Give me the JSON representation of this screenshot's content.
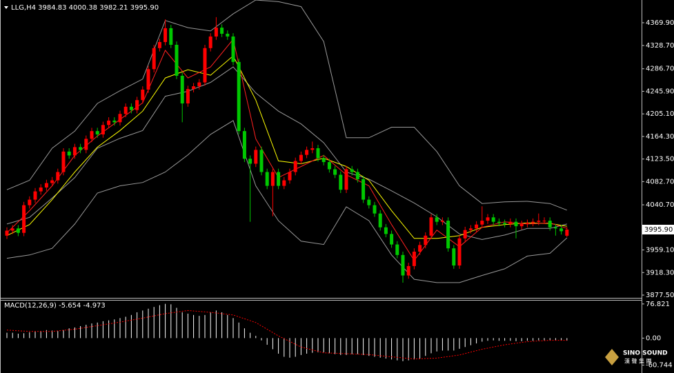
{
  "chart_data": [
    {
      "type": "candlestick",
      "title": "LLG,H4 3984.83 4000.38 3982.21 3995.90",
      "up_color": "#ff0000",
      "down_color": "#00c800",
      "ylim": [
        3872.5,
        4411
      ],
      "yticks": [
        {
          "value": 4369.9,
          "label": "4369.90"
        },
        {
          "value": 4328.7,
          "label": "4328.70"
        },
        {
          "value": 4286.7,
          "label": "4286.70"
        },
        {
          "value": 4245.9,
          "label": "4245.90"
        },
        {
          "value": 4205.1,
          "label": "4205.10"
        },
        {
          "value": 4164.3,
          "label": "4164.30"
        },
        {
          "value": 4123.5,
          "label": "4123.50"
        },
        {
          "value": 4082.7,
          "label": "4082.70"
        },
        {
          "value": 4040.7,
          "label": "4040.70"
        },
        {
          "value": 3959.1,
          "label": "3959.10"
        },
        {
          "value": 3918.3,
          "label": "3918.30"
        },
        {
          "value": 3877.5,
          "label": "3877.50"
        }
      ],
      "last_price": {
        "value": 3995.9,
        "label": "3995.90"
      },
      "open": [
        3985,
        3994,
        3998,
        3990,
        4040,
        4050,
        4065,
        4072,
        4080,
        4085,
        4100,
        4137,
        4130,
        4145,
        4140,
        4160,
        4174,
        4168,
        4185,
        4193,
        4190,
        4205,
        4218,
        4212,
        4230,
        4249,
        4286,
        4324,
        4335,
        4360,
        4330,
        4274,
        4224,
        4250,
        4255,
        4262,
        4324,
        4345,
        4361,
        4350,
        4345,
        4299,
        4174,
        4124,
        4115,
        4140,
        4100,
        4075,
        4100,
        4075,
        4085,
        4100,
        4120,
        4131,
        4140,
        4143,
        4125,
        4118,
        4105,
        4095,
        4068,
        4105,
        4100,
        4087,
        4050,
        4040,
        4025,
        4000,
        3988,
        3969,
        3950,
        3913,
        3930,
        3956,
        3968,
        3985,
        4018,
        4010,
        4012,
        3962,
        3931,
        3980,
        3995,
        3998,
        4005,
        4012,
        4018,
        4010,
        4008,
        4006,
        4010,
        4002,
        4006,
        4008,
        4010,
        4012,
        4012,
        4000,
        3998,
        3984.83
      ],
      "high": [
        4000,
        4004,
        4004,
        4046,
        4056,
        4071,
        4078,
        4086,
        4091,
        4106,
        4143,
        4143,
        4151,
        4151,
        4166,
        4180,
        4180,
        4191,
        4199,
        4199,
        4211,
        4224,
        4224,
        4236,
        4255,
        4292,
        4330,
        4341,
        4376,
        4366,
        4336,
        4280,
        4256,
        4261,
        4268,
        4330,
        4351,
        4380,
        4367,
        4356,
        4351,
        4305,
        4180,
        4130,
        4146,
        4146,
        4106,
        4106,
        4106,
        4091,
        4106,
        4126,
        4137,
        4146,
        4155,
        4149,
        4131,
        4124,
        4111,
        4101,
        4111,
        4111,
        4106,
        4093,
        4056,
        4046,
        4031,
        4006,
        3994,
        3975,
        3956,
        3936,
        3962,
        3974,
        3991,
        4024,
        4024,
        4018,
        4018,
        3968,
        3986,
        4001,
        4004,
        4011,
        4038,
        4024,
        4024,
        4016,
        4014,
        4016,
        4016,
        4012,
        4014,
        4016,
        4025,
        4018,
        4018,
        4006,
        4004,
        4000.38
      ],
      "low": [
        3979,
        3988,
        3984,
        3984,
        4034,
        4044,
        4059,
        4066,
        4074,
        4079,
        4094,
        4124,
        4124,
        4134,
        4134,
        4154,
        4162,
        4162,
        4179,
        4184,
        4184,
        4199,
        4206,
        4206,
        4224,
        4243,
        4280,
        4318,
        4329,
        4324,
        4268,
        4190,
        4218,
        4244,
        4249,
        4256,
        4318,
        4339,
        4344,
        4339,
        4293,
        4168,
        4118,
        4010,
        4109,
        4094,
        4069,
        4020,
        4069,
        4069,
        4079,
        4094,
        4114,
        4125,
        4134,
        4119,
        4112,
        4099,
        4089,
        4062,
        4062,
        4094,
        4081,
        4044,
        4034,
        4019,
        3994,
        3982,
        3963,
        3944,
        3900,
        3907,
        3924,
        3950,
        3962,
        3979,
        4004,
        4004,
        3956,
        3925,
        3925,
        3974,
        3989,
        3992,
        3999,
        4006,
        4004,
        4002,
        4000,
        4000,
        3980,
        3996,
        4000,
        4002,
        4004,
        4006,
        3994,
        3985,
        3987,
        3982.21
      ],
      "close": [
        3994,
        3998,
        3990,
        4040,
        4050,
        4065,
        4072,
        4080,
        4085,
        4100,
        4137,
        4130,
        4145,
        4140,
        4160,
        4174,
        4168,
        4185,
        4193,
        4190,
        4205,
        4218,
        4212,
        4230,
        4249,
        4286,
        4324,
        4335,
        4360,
        4330,
        4274,
        4224,
        4250,
        4255,
        4262,
        4324,
        4345,
        4361,
        4350,
        4345,
        4299,
        4174,
        4124,
        4115,
        4140,
        4100,
        4075,
        4100,
        4075,
        4085,
        4100,
        4120,
        4131,
        4140,
        4143,
        4125,
        4118,
        4105,
        4095,
        4068,
        4105,
        4100,
        4087,
        4050,
        4040,
        4025,
        4000,
        3988,
        3969,
        3950,
        3913,
        3930,
        3956,
        3968,
        3985,
        4018,
        4010,
        4012,
        3962,
        3931,
        3980,
        3995,
        3998,
        4005,
        4012,
        4018,
        4010,
        4008,
        4006,
        4010,
        4002,
        4006,
        4008,
        4010,
        4012,
        4012,
        4000,
        3998,
        3993,
        3995.9
      ],
      "overlay_x": [
        0,
        4,
        8,
        12,
        16,
        20,
        24,
        28,
        32,
        36,
        40,
        44,
        48,
        52,
        56,
        60,
        64,
        68,
        72,
        76,
        80,
        84,
        88,
        92,
        96,
        99
      ],
      "overlays": [
        {
          "color": "#9a9a9a",
          "values": [
            4068,
            4085,
            4143,
            4174,
            4224,
            4247,
            4268,
            4374,
            4361,
            4355,
            4386,
            4411,
            4408,
            4399,
            4336,
            4162,
            4162,
            4181,
            4181,
            4137,
            4075,
            4043,
            4046,
            4047,
            4043,
            4031
          ]
        },
        {
          "color": "#9a9a9a",
          "values": [
            4006,
            4018,
            4053,
            4090,
            4143,
            4161,
            4175,
            4237,
            4246,
            4262,
            4290,
            4243,
            4210,
            4187,
            4153,
            4100,
            4087,
            4066,
            4044,
            4019,
            3988,
            3978,
            3986,
            3998,
            3998,
            4006
          ]
        },
        {
          "color": "#9a9a9a",
          "values": [
            3944,
            3950,
            3962,
            4006,
            4062,
            4075,
            4081,
            4100,
            4131,
            4168,
            4193,
            4075,
            4012,
            3975,
            3969,
            4037,
            4012,
            3950,
            3906,
            3900,
            3900,
            3913,
            3925,
            3948,
            3953,
            3981
          ]
        },
        {
          "color": "#ffff00",
          "values": [
            3985,
            4005,
            4050,
            4100,
            4145,
            4175,
            4210,
            4270,
            4285,
            4275,
            4310,
            4230,
            4120,
            4115,
            4125,
            4110,
            4085,
            4030,
            3980,
            3980,
            3985,
            4000,
            4005,
            4008,
            4007,
            4002
          ]
        },
        {
          "color": "#ff2020",
          "values": [
            3990,
            4030,
            4075,
            4130,
            4165,
            4195,
            4225,
            4320,
            4270,
            4290,
            4340,
            4160,
            4090,
            4110,
            4130,
            4095,
            4075,
            4005,
            3940,
            3995,
            3965,
            4000,
            4010,
            4006,
            4008,
            3998
          ]
        }
      ]
    },
    {
      "type": "macd",
      "title": "MACD(12,26,9) -5.654 -4.973",
      "ylim": [
        -73.8,
        84.3
      ],
      "yticks": [
        76.821,
        {
          "value": 0,
          "label": "0.00"
        },
        -60.744
      ],
      "histogram": {
        "color": "#ffffff",
        "values": [
          12,
          12,
          10,
          11,
          13,
          15,
          16,
          18,
          17,
          16,
          18,
          22,
          24,
          27,
          30,
          33,
          35,
          38,
          40,
          42,
          45,
          48,
          52,
          58,
          62,
          66,
          70,
          74,
          77,
          76,
          68,
          58,
          55,
          52,
          50,
          52,
          58,
          62,
          58,
          52,
          45,
          35,
          22,
          12,
          5,
          -5,
          -15,
          -25,
          -35,
          -42,
          -44,
          -42,
          -38,
          -35,
          -33,
          -32,
          -32,
          -34,
          -36,
          -38,
          -38,
          -36,
          -36,
          -38,
          -40,
          -42,
          -44,
          -46,
          -48,
          -50,
          -52,
          -50,
          -48,
          -46,
          -40,
          -34,
          -30,
          -28,
          -28,
          -28,
          -24,
          -20,
          -16,
          -12,
          -8,
          -6,
          -5,
          -6,
          -6,
          -6,
          -7,
          -7,
          -6,
          -6,
          -5,
          -5,
          -5,
          -5,
          -5,
          -5.654
        ]
      },
      "signal": {
        "color": "#ff0000",
        "x": [
          0,
          4,
          8,
          12,
          16,
          20,
          24,
          28,
          32,
          36,
          40,
          44,
          48,
          52,
          56,
          60,
          64,
          68,
          72,
          76,
          80,
          84,
          88,
          92,
          96,
          99
        ],
        "values": [
          18,
          15,
          15,
          20,
          28,
          36,
          45,
          55,
          62,
          58,
          52,
          35,
          5,
          -20,
          -33,
          -35,
          -37,
          -42,
          -47,
          -45,
          -38,
          -25,
          -15,
          -8,
          -5,
          -4.973
        ]
      }
    }
  ],
  "logo": "SINO SOUND",
  "logo_sub": "漢 聲 集 團"
}
